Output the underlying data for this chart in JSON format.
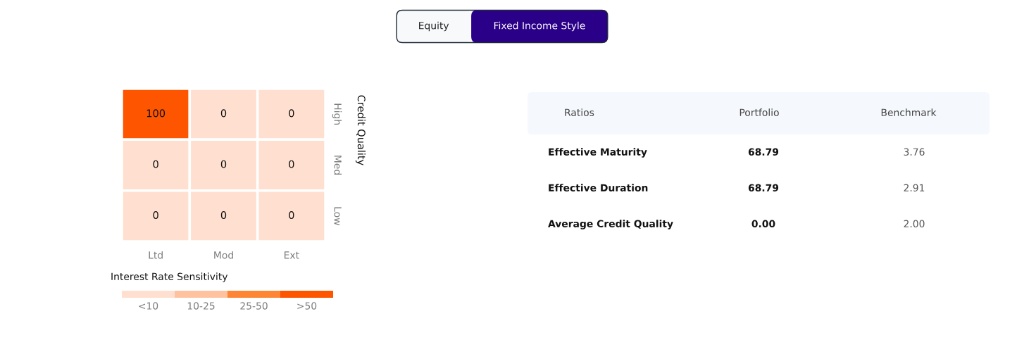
{
  "chart_data": [
    {
      "type": "other",
      "annotations": [
        "Equity",
        "Fixed Income Style"
      ],
      "colors": [
        "#f8f9fb",
        "#2a0088"
      ]
    },
    {
      "type": "heatmap",
      "categories": [
        "Ltd",
        "Mod",
        "Ext"
      ],
      "y_categories": [
        "High",
        "Med",
        "Low"
      ],
      "cells": [
        [
          100,
          0,
          0
        ],
        [
          0,
          0,
          0
        ],
        [
          0,
          0,
          0
        ]
      ],
      "data_labels": true,
      "xlabel": "Interest Rate Sensitivity",
      "ylabel": "Credit Quality",
      "colors": [
        [
          "#fd5500",
          "#ffe0d0",
          "#ffe0d0"
        ],
        [
          "#ffe0d0",
          "#ffe0d0",
          "#ffe0d0"
        ],
        [
          "#ffe0d0",
          "#ffe0d0",
          "#ffe0d0"
        ]
      ],
      "annotations": [
        "<10",
        "10-25",
        "25-50",
        ">50"
      ]
    },
    {
      "type": "other",
      "categories": [
        "Ratios",
        "Portfolio",
        "Benchmark"
      ],
      "y_categories": [
        "Effective Maturity",
        "Effective Duration",
        "Average Credit Quality"
      ],
      "cell_labels": [
        [
          "68.79",
          "3.76"
        ],
        [
          "68.79",
          "2.91"
        ],
        [
          "0.00",
          "2.00"
        ]
      ]
    }
  ]
}
